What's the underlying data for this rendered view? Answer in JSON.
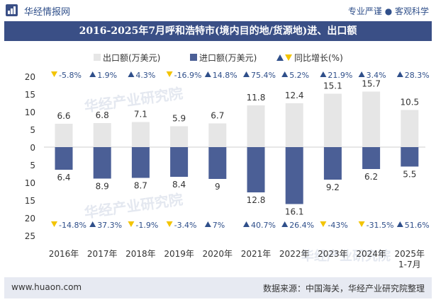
{
  "header": {
    "brand": "华经情报网",
    "tagline": "专业严谨 ● 客观科学",
    "title": "2016-2025年7月呼和浩特市(境内目的地/货源地)进、出口额"
  },
  "footer": {
    "url": "www.huaon.com",
    "source": "数据来源：中国海关，华经产业研究院整理"
  },
  "watermark": "华经产业研究院",
  "colors": {
    "export_bar": "#e6e6e6",
    "import_bar": "#4b5f96",
    "growth_up": "#2f4f8a",
    "growth_down": "#f3c400",
    "title_bg": "#3a4f86"
  },
  "chart_data": {
    "type": "bar",
    "categories": [
      "2016年",
      "2017年",
      "2018年",
      "2019年",
      "2020年",
      "2021年",
      "2022年",
      "2023年",
      "2024年",
      "2025年\n1-7月"
    ],
    "legend": [
      "出口额(万美元)",
      "进口额(万美元)",
      "同比增长(%)"
    ],
    "y_ticks_top": [
      "20",
      "15",
      "10",
      "5",
      "0"
    ],
    "y_ticks_bottom": [
      "5",
      "10",
      "15",
      "20",
      "25"
    ],
    "ylim": [
      -25,
      20
    ],
    "series": [
      {
        "name": "出口额(万美元)",
        "values": [
          6.6,
          6.8,
          7.1,
          5.9,
          6.7,
          11.8,
          12.4,
          15.1,
          15.7,
          10.5
        ],
        "labels": [
          "6.6",
          "6.8",
          "7.1",
          "5.9",
          "6.7",
          "11.8",
          "12.4",
          "15.1",
          "15.7",
          "10.5"
        ],
        "growth": [
          "-5.8%",
          "1.9%",
          "4.3%",
          "-16.9%",
          "14.8%",
          "75.4%",
          "5.2%",
          "21.9%",
          "3.4%",
          "28.3%"
        ]
      },
      {
        "name": "进口额(万美元)",
        "values": [
          6.4,
          8.9,
          8.7,
          8.4,
          9,
          12.8,
          16.1,
          9.2,
          6.2,
          5.5
        ],
        "labels": [
          "6.4",
          "8.9",
          "8.7",
          "8.4",
          "9",
          "12.8",
          "16.1",
          "9.2",
          "6.2",
          "5.5"
        ],
        "growth": [
          "-14.8%",
          "37.3%",
          "-1.9%",
          "-3.4%",
          "7%",
          "40.7%",
          "26.4%",
          "-43%",
          "-31.5%",
          "51.6%"
        ]
      }
    ]
  }
}
